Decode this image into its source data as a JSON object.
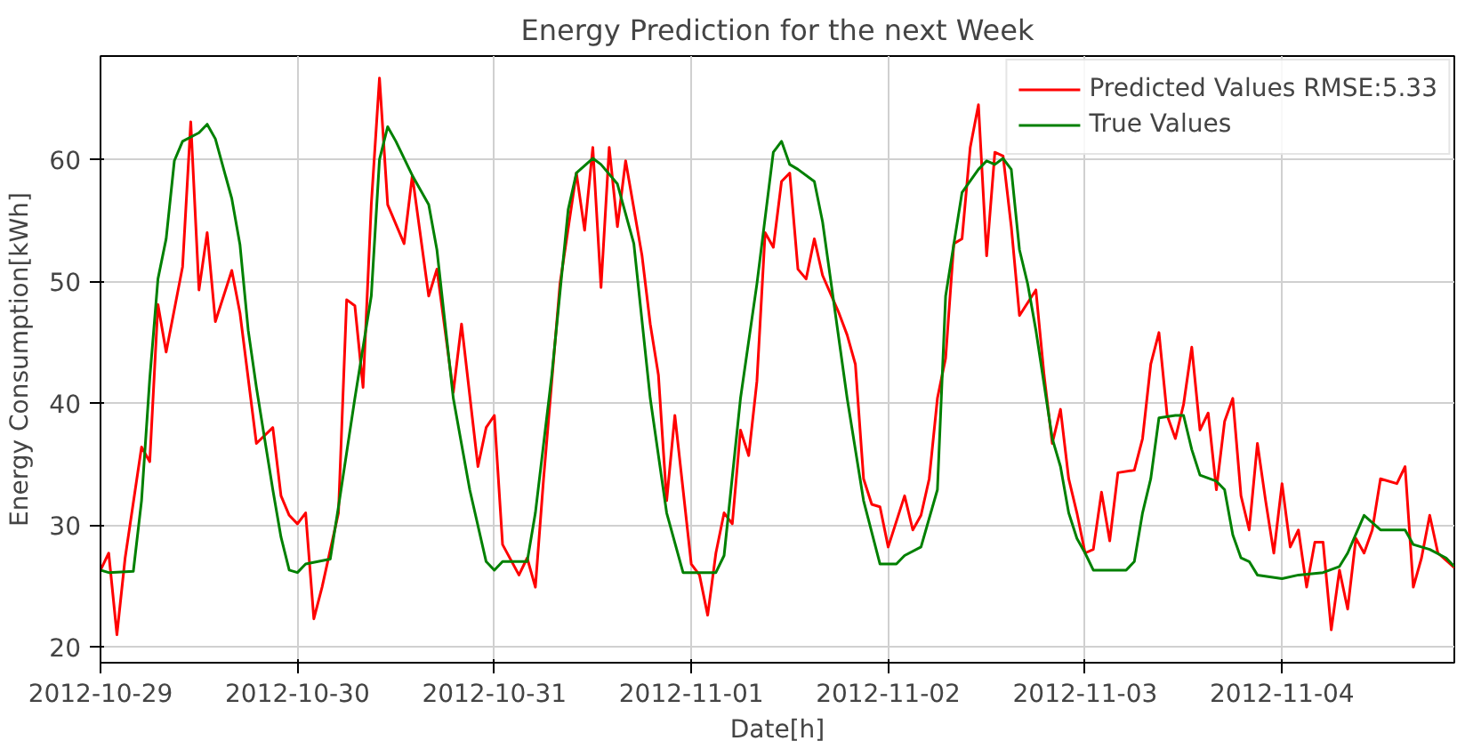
{
  "chart_data": {
    "type": "line",
    "title": "Energy Prediction for the next Week",
    "xlabel": "Date[h]",
    "ylabel": "Energy Consumption[kWh]",
    "xlim": [
      "2012-10-29T00:00",
      "2012-11-04T21:00"
    ],
    "ylim": [
      18.7,
      68.5
    ],
    "xticks": [
      "2012-10-29",
      "2012-10-30",
      "2012-10-31",
      "2012-11-01",
      "2012-11-02",
      "2012-11-03",
      "2012-11-04"
    ],
    "yticks": [
      20,
      30,
      40,
      50,
      60
    ],
    "grid": true,
    "legend": "top right",
    "line_style": "solid",
    "marker": "none",
    "series": [
      {
        "name": "Predicted Values RMSE:5.33",
        "color": "#ff0000",
        "x": [
          "2012-10-29T00:00",
          "2012-10-29T01:00",
          "2012-10-29T02:00",
          "2012-10-29T03:00",
          "2012-10-29T05:00",
          "2012-10-29T06:00",
          "2012-10-29T07:00",
          "2012-10-29T08:00",
          "2012-10-29T10:00",
          "2012-10-29T11:00",
          "2012-10-29T12:00",
          "2012-10-29T13:00",
          "2012-10-29T14:00",
          "2012-10-29T16:00",
          "2012-10-29T17:00",
          "2012-10-29T19:00",
          "2012-10-29T21:00",
          "2012-10-29T22:00",
          "2012-10-29T23:00",
          "2012-10-30T00:00",
          "2012-10-30T01:00",
          "2012-10-30T02:00",
          "2012-10-30T03:00",
          "2012-10-30T05:00",
          "2012-10-30T06:00",
          "2012-10-30T07:00",
          "2012-10-30T08:00",
          "2012-10-30T09:00",
          "2012-10-30T10:00",
          "2012-10-30T11:00",
          "2012-10-30T13:00",
          "2012-10-30T14:00",
          "2012-10-30T16:00",
          "2012-10-30T17:00",
          "2012-10-30T19:00",
          "2012-10-30T20:00",
          "2012-10-30T22:00",
          "2012-10-30T23:00",
          "2012-10-31T00:00",
          "2012-10-31T01:00",
          "2012-10-31T03:00",
          "2012-10-31T04:00",
          "2012-10-31T05:00",
          "2012-10-31T06:00",
          "2012-10-31T07:00",
          "2012-10-31T08:00",
          "2012-10-31T10:00",
          "2012-10-31T11:00",
          "2012-10-31T12:00",
          "2012-10-31T13:00",
          "2012-10-31T14:00",
          "2012-10-31T15:00",
          "2012-10-31T16:00",
          "2012-10-31T18:00",
          "2012-10-31T19:00",
          "2012-10-31T20:00",
          "2012-10-31T21:00",
          "2012-10-31T22:00",
          "2012-10-31T23:00",
          "2012-11-01T00:00",
          "2012-11-01T01:00",
          "2012-11-01T02:00",
          "2012-11-01T03:00",
          "2012-11-01T04:00",
          "2012-11-01T05:00",
          "2012-11-01T06:00",
          "2012-11-01T07:00",
          "2012-11-01T08:00",
          "2012-11-01T09:00",
          "2012-11-01T10:00",
          "2012-11-01T11:00",
          "2012-11-01T12:00",
          "2012-11-01T13:00",
          "2012-11-01T14:00",
          "2012-11-01T15:00",
          "2012-11-01T16:00",
          "2012-11-01T18:00",
          "2012-11-01T19:00",
          "2012-11-01T20:00",
          "2012-11-01T21:00",
          "2012-11-01T22:00",
          "2012-11-01T23:00",
          "2012-11-02T00:00",
          "2012-11-02T02:00",
          "2012-11-02T03:00",
          "2012-11-02T04:00",
          "2012-11-02T05:00",
          "2012-11-02T06:00",
          "2012-11-02T07:00",
          "2012-11-02T08:00",
          "2012-11-02T09:00",
          "2012-11-02T10:00",
          "2012-11-02T11:00",
          "2012-11-02T12:00",
          "2012-11-02T13:00",
          "2012-11-02T14:00",
          "2012-11-02T15:00",
          "2012-11-02T16:00",
          "2012-11-02T18:00",
          "2012-11-02T19:00",
          "2012-11-02T20:00",
          "2012-11-02T21:00",
          "2012-11-02T22:00",
          "2012-11-02T23:00",
          "2012-11-03T00:00",
          "2012-11-03T01:00",
          "2012-11-03T02:00",
          "2012-11-03T03:00",
          "2012-11-03T04:00",
          "2012-11-03T06:00",
          "2012-11-03T07:00",
          "2012-11-03T08:00",
          "2012-11-03T09:00",
          "2012-11-03T10:00",
          "2012-11-03T11:00",
          "2012-11-03T12:00",
          "2012-11-03T13:00",
          "2012-11-03T14:00",
          "2012-11-03T15:00",
          "2012-11-03T16:00",
          "2012-11-03T17:00",
          "2012-11-03T18:00",
          "2012-11-03T19:00",
          "2012-11-03T20:00",
          "2012-11-03T21:00",
          "2012-11-03T22:00",
          "2012-11-03T23:00",
          "2012-11-04T00:00",
          "2012-11-04T01:00",
          "2012-11-04T02:00",
          "2012-11-04T03:00",
          "2012-11-04T04:00",
          "2012-11-04T05:00",
          "2012-11-04T06:00",
          "2012-11-04T07:00",
          "2012-11-04T08:00",
          "2012-11-04T09:00",
          "2012-11-04T10:00",
          "2012-11-04T11:00",
          "2012-11-04T12:00",
          "2012-11-04T14:00",
          "2012-11-04T15:00",
          "2012-11-04T16:00",
          "2012-11-04T17:00",
          "2012-11-04T18:00",
          "2012-11-04T19:00",
          "2012-11-04T21:00"
        ],
        "values": [
          26.3,
          27.7,
          21,
          27.3,
          36.4,
          35.2,
          48.1,
          44.2,
          51.2,
          63.1,
          49.3,
          54,
          46.7,
          50.9,
          47.4,
          36.7,
          38,
          32.4,
          30.8,
          30.1,
          31,
          22.3,
          24.9,
          31,
          48.5,
          48,
          41.3,
          56.3,
          66.7,
          56.3,
          53.1,
          58.7,
          48.8,
          51,
          40.9,
          46.5,
          34.8,
          38,
          39,
          28.4,
          25.9,
          27.3,
          24.9,
          33.8,
          41.8,
          49.8,
          58.9,
          54.2,
          61,
          49.5,
          61,
          54.5,
          59.9,
          52.1,
          46.5,
          42.3,
          32,
          39,
          32.9,
          26.8,
          25.9,
          22.6,
          27.7,
          31,
          30.1,
          37.8,
          35.7,
          41.8,
          54,
          52.8,
          58.2,
          58.9,
          51,
          50.2,
          53.5,
          50.5,
          47.4,
          45.6,
          43.2,
          33.8,
          31.7,
          31.5,
          28.2,
          32.4,
          29.6,
          30.8,
          33.8,
          40.4,
          43.7,
          53.1,
          53.5,
          61,
          64.5,
          52.1,
          60.6,
          60.3,
          54.5,
          47.2,
          49.3,
          42.3,
          36.7,
          39.5,
          33.8,
          31,
          27.7,
          28,
          32.7,
          28.7,
          34.3,
          34.5,
          37.1,
          43.2,
          45.8,
          39,
          37.1,
          39.9,
          44.6,
          37.8,
          39.2,
          32.9,
          38.5,
          40.4,
          32.4,
          29.6,
          36.7,
          32,
          27.7,
          33.4,
          28.2,
          29.6,
          24.9,
          28.6,
          28.6,
          21.4,
          26.3,
          23.1,
          28.9,
          27.7,
          29.6,
          33.8,
          33.4,
          34.8,
          24.9,
          27.3,
          30.8,
          27.7,
          26.5
        ]
      },
      {
        "name": "True Values",
        "color": "#008000",
        "x": [
          "2012-10-29T00:00",
          "2012-10-29T01:00",
          "2012-10-29T04:00",
          "2012-10-29T05:00",
          "2012-10-29T06:00",
          "2012-10-29T07:00",
          "2012-10-29T08:00",
          "2012-10-29T09:00",
          "2012-10-29T10:00",
          "2012-10-29T12:00",
          "2012-10-29T13:00",
          "2012-10-29T14:00",
          "2012-10-29T16:00",
          "2012-10-29T17:00",
          "2012-10-29T18:00",
          "2012-10-29T19:00",
          "2012-10-29T21:00",
          "2012-10-29T22:00",
          "2012-10-29T23:00",
          "2012-10-30T00:00",
          "2012-10-30T01:00",
          "2012-10-30T04:00",
          "2012-10-30T05:00",
          "2012-10-30T07:00",
          "2012-10-30T09:00",
          "2012-10-30T10:00",
          "2012-10-30T11:00",
          "2012-10-30T12:00",
          "2012-10-30T14:00",
          "2012-10-30T16:00",
          "2012-10-30T17:00",
          "2012-10-30T19:00",
          "2012-10-30T21:00",
          "2012-10-30T23:00",
          "2012-10-31T00:00",
          "2012-10-31T01:00",
          "2012-10-31T04:00",
          "2012-10-31T05:00",
          "2012-10-31T07:00",
          "2012-10-31T09:00",
          "2012-10-31T10:00",
          "2012-10-31T12:00",
          "2012-10-31T13:00",
          "2012-10-31T15:00",
          "2012-10-31T17:00",
          "2012-10-31T19:00",
          "2012-10-31T21:00",
          "2012-10-31T23:00",
          "2012-11-01T03:00",
          "2012-11-01T04:00",
          "2012-11-01T06:00",
          "2012-11-01T08:00",
          "2012-11-01T10:00",
          "2012-11-01T11:00",
          "2012-11-01T12:00",
          "2012-11-01T13:00",
          "2012-11-01T15:00",
          "2012-11-01T16:00",
          "2012-11-01T19:00",
          "2012-11-01T21:00",
          "2012-11-01T23:00",
          "2012-11-02T01:00",
          "2012-11-02T02:00",
          "2012-11-02T04:00",
          "2012-11-02T06:00",
          "2012-11-02T07:00",
          "2012-11-02T09:00",
          "2012-11-02T11:00",
          "2012-11-02T12:00",
          "2012-11-02T13:00",
          "2012-11-02T14:00",
          "2012-11-02T15:00",
          "2012-11-02T16:00",
          "2012-11-02T17:00",
          "2012-11-02T18:00",
          "2012-11-02T20:00",
          "2012-11-02T21:00",
          "2012-11-02T22:00",
          "2012-11-02T23:00",
          "2012-11-03T00:00",
          "2012-11-03T01:00",
          "2012-11-03T05:00",
          "2012-11-03T06:00",
          "2012-11-03T07:00",
          "2012-11-03T08:00",
          "2012-11-03T09:00",
          "2012-11-03T11:00",
          "2012-11-03T12:00",
          "2012-11-03T13:00",
          "2012-11-03T14:00",
          "2012-11-03T16:00",
          "2012-11-03T17:00",
          "2012-11-03T18:00",
          "2012-11-03T19:00",
          "2012-11-03T20:00",
          "2012-11-03T21:00",
          "2012-11-04T00:00",
          "2012-11-04T02:00",
          "2012-11-04T05:00",
          "2012-11-04T07:00",
          "2012-11-04T08:00",
          "2012-11-04T10:00",
          "2012-11-04T12:00",
          "2012-11-04T15:00",
          "2012-11-04T16:00",
          "2012-11-04T18:00",
          "2012-11-04T20:00",
          "2012-11-04T21:00"
        ],
        "values": [
          26.3,
          26.1,
          26.2,
          32,
          42,
          50.2,
          53.5,
          59.9,
          61.5,
          62.2,
          62.9,
          61.7,
          56.8,
          53,
          46,
          41.3,
          32.9,
          29,
          26.3,
          26.1,
          26.8,
          27.2,
          31.5,
          40.4,
          48.8,
          60,
          62.7,
          61.5,
          58.7,
          56.3,
          52.6,
          40.4,
          32.9,
          27,
          26.3,
          27,
          27,
          31,
          42.3,
          55.9,
          58.9,
          60.1,
          59.6,
          58,
          53.1,
          40.4,
          31,
          26.1,
          26.1,
          27.5,
          40.4,
          49.8,
          60.6,
          61.5,
          59.6,
          59.2,
          58.2,
          54.9,
          40.4,
          32,
          26.8,
          26.8,
          27.5,
          28.2,
          32.9,
          48.8,
          57.3,
          59.2,
          59.9,
          59.6,
          60.1,
          59.2,
          52.6,
          49.8,
          46,
          37.1,
          34.8,
          31,
          28.9,
          27.7,
          26.3,
          26.3,
          27,
          31,
          33.8,
          38.8,
          39,
          39,
          36.2,
          34.1,
          33.6,
          32.9,
          29.2,
          27.3,
          27,
          25.9,
          25.6,
          25.9,
          26.1,
          26.6,
          27.7,
          30.8,
          29.6,
          29.6,
          28.4,
          28,
          27.3,
          26.6
        ]
      }
    ]
  }
}
